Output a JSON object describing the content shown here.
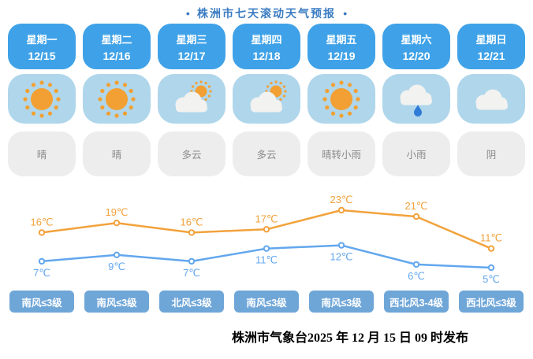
{
  "header": {
    "bullet": "●",
    "title": "株洲市七天滚动天气预报"
  },
  "forecast": {
    "days": [
      {
        "weekday": "星期一",
        "date": "12/15",
        "icon": "sunny-icon",
        "condition": "晴",
        "wind": "南风≤3级"
      },
      {
        "weekday": "星期二",
        "date": "12/16",
        "icon": "sunny-icon",
        "condition": "晴",
        "wind": "南风≤3级"
      },
      {
        "weekday": "星期三",
        "date": "12/17",
        "icon": "partly-cloudy-icon",
        "condition": "多云",
        "wind": "北风≤3级"
      },
      {
        "weekday": "星期四",
        "date": "12/18",
        "icon": "partly-cloudy-icon",
        "condition": "多云",
        "wind": "南风≤3级"
      },
      {
        "weekday": "星期五",
        "date": "12/19",
        "icon": "sunny-icon",
        "condition": "晴转小雨",
        "wind": "南风≤3级"
      },
      {
        "weekday": "星期六",
        "date": "12/20",
        "icon": "light-rain-icon",
        "condition": "小雨",
        "wind": "西北风3-4级"
      },
      {
        "weekday": "星期日",
        "date": "12/21",
        "icon": "overcast-icon",
        "condition": "阴",
        "wind": "西北风≤3级"
      }
    ]
  },
  "chart_data": {
    "type": "line",
    "categories": [
      "星期一",
      "星期二",
      "星期三",
      "星期四",
      "星期五",
      "星期六",
      "星期日"
    ],
    "series": [
      {
        "name": "high",
        "color": "#f2a23c",
        "values": [
          16,
          19,
          16,
          17,
          23,
          21,
          11
        ],
        "label_position": "above"
      },
      {
        "name": "low",
        "color": "#62a7ee",
        "values": [
          7,
          9,
          7,
          11,
          12,
          6,
          5
        ],
        "label_position": "below"
      }
    ],
    "unit": "℃",
    "ylim": [
      5,
      23
    ],
    "grid": false,
    "legend": false,
    "title": "",
    "xlabel": "",
    "ylabel": ""
  },
  "colors": {
    "title_blue": "#3b7cc2",
    "day_header_blue": "#3fa2e8",
    "icon_box_blue": "#afd6eb",
    "condition_gray": "#ededed",
    "condition_text_gray": "#8a8a8a",
    "wind_blue": "#6fa6d8",
    "high_line_orange": "#f2a23c",
    "low_line_blue": "#62a7ee",
    "sun_orange": "#f2a033",
    "cloud_white": "#f2f2f0",
    "rain_drop_blue": "#2f7bd6"
  },
  "footer": {
    "publish_info": "株洲市气象台2025 年 12 月 15 日 09 时发布"
  }
}
